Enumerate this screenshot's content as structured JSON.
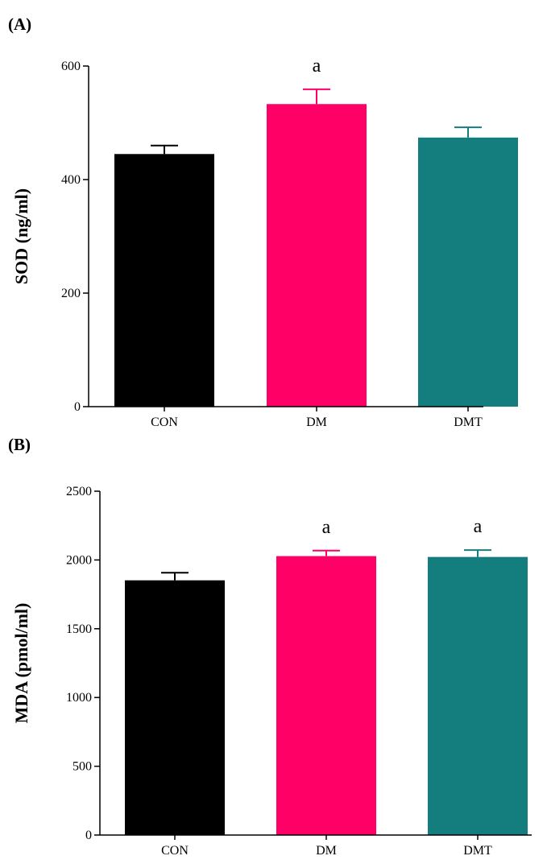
{
  "panels": [
    {
      "label": "(A)"
    },
    {
      "label": "(B)"
    }
  ],
  "chart_data": [
    {
      "type": "bar",
      "panel": "(A)",
      "categories": [
        "CON",
        "DM",
        "DMT"
      ],
      "values": [
        445,
        533,
        474
      ],
      "errors": [
        15,
        26,
        18
      ],
      "significance": [
        "",
        "a",
        ""
      ],
      "colors": [
        "#000000",
        "#fe0066",
        "#147e7e"
      ],
      "ylabel": "SOD (ng/ml)",
      "ylim": [
        0,
        600
      ],
      "yticks": [
        0,
        200,
        400,
        600
      ]
    },
    {
      "type": "bar",
      "panel": "(B)",
      "categories": [
        "CON",
        "DM",
        "DMT"
      ],
      "values": [
        1852,
        2028,
        2022
      ],
      "errors": [
        55,
        40,
        50
      ],
      "significance": [
        "",
        "a",
        "a"
      ],
      "colors": [
        "#000000",
        "#fe0066",
        "#147e7e"
      ],
      "ylabel": "MDA (pmol/ml)",
      "ylim": [
        0,
        2500
      ],
      "yticks": [
        0,
        500,
        1000,
        1500,
        2000,
        2500
      ]
    }
  ]
}
